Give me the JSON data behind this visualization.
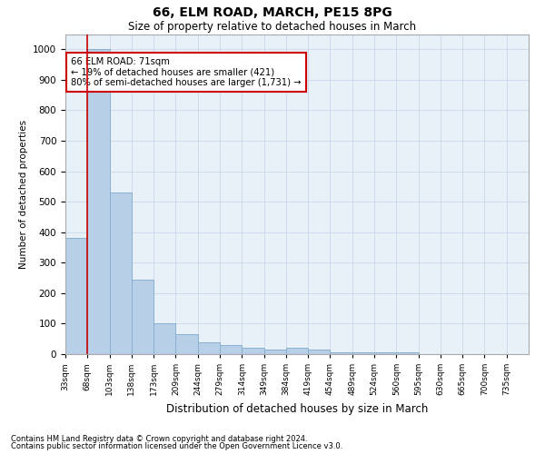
{
  "title1": "66, ELM ROAD, MARCH, PE15 8PG",
  "title2": "Size of property relative to detached houses in March",
  "xlabel": "Distribution of detached houses by size in March",
  "ylabel": "Number of detached properties",
  "bar_values": [
    380,
    1000,
    530,
    245,
    100,
    65,
    40,
    30,
    20,
    15,
    20,
    15,
    5,
    5,
    5,
    5,
    0,
    0,
    0,
    0,
    0
  ],
  "bin_labels": [
    "33sqm",
    "68sqm",
    "103sqm",
    "138sqm",
    "173sqm",
    "209sqm",
    "244sqm",
    "279sqm",
    "314sqm",
    "349sqm",
    "384sqm",
    "419sqm",
    "454sqm",
    "489sqm",
    "524sqm",
    "560sqm",
    "595sqm",
    "630sqm",
    "665sqm",
    "700sqm",
    "735sqm"
  ],
  "bar_color": "#b8cfe8",
  "bar_edge_color": "#8aafd0",
  "grid_color": "#c8d8ea",
  "background_color": "#e8f0f8",
  "red_line_color": "#cc0000",
  "annotation_text": "66 ELM ROAD: 71sqm\n← 19% of detached houses are smaller (421)\n80% of semi-detached houses are larger (1,731) →",
  "annotation_box_color": "#ffffff",
  "annotation_box_edge": "#cc0000",
  "ylim": [
    0,
    1050
  ],
  "yticks": [
    0,
    100,
    200,
    300,
    400,
    500,
    600,
    700,
    800,
    900,
    1000
  ],
  "footnote1": "Contains HM Land Registry data © Crown copyright and database right 2024.",
  "footnote2": "Contains public sector information licensed under the Open Government Licence v3.0."
}
